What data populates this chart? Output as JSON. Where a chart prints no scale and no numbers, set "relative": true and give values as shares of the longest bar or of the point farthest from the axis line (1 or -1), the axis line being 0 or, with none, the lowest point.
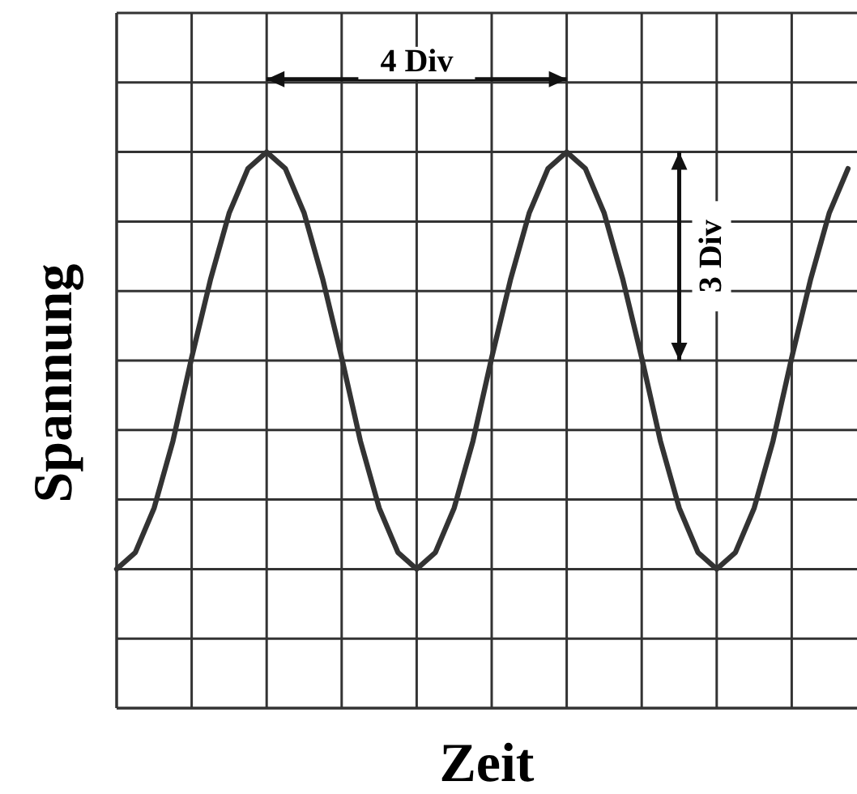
{
  "chart_data": {
    "type": "line",
    "relative": true,
    "xlabel": "Zeit",
    "ylabel": "Spannung",
    "grid": true,
    "marker": "none",
    "line_style": "solid",
    "categories": [
      null,
      null,
      null,
      null,
      null,
      null,
      null,
      null,
      null,
      null,
      null,
      null,
      null,
      null,
      null,
      null,
      null,
      null,
      null,
      null,
      null,
      null,
      null,
      null,
      null,
      null,
      null,
      null,
      null,
      null,
      null,
      null,
      null,
      null,
      null,
      null,
      null,
      null,
      null,
      null
    ],
    "series": [
      {
        "color": "#333333",
        "values": [
          0.25,
          0.28,
          0.36,
          0.48,
          0.63,
          0.77,
          0.89,
          0.97,
          1,
          0.97,
          0.89,
          0.77,
          0.63,
          0.48,
          0.36,
          0.28,
          0.25,
          0.28,
          0.36,
          0.48,
          0.63,
          0.77,
          0.89,
          0.97,
          1,
          0.97,
          0.89,
          0.77,
          0.63,
          0.48,
          0.36,
          0.28,
          0.25,
          0.28,
          0.36,
          0.48,
          0.63,
          0.77,
          0.89,
          0.97
        ]
      }
    ],
    "annotations": [
      "4 Div",
      "3 Div"
    ]
  }
}
